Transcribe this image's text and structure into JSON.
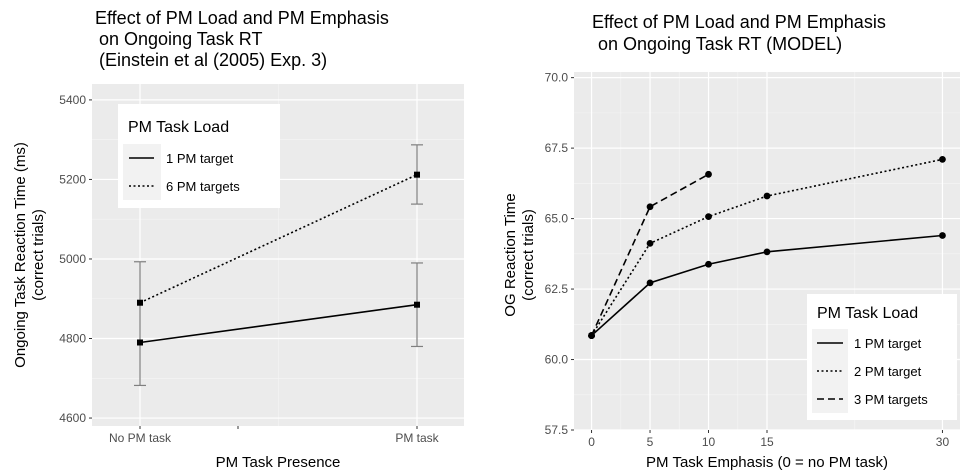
{
  "chart_data": [
    {
      "type": "line",
      "title": [
        "Effect of PM Load and PM Emphasis",
        "on Ongoing Task RT",
        "(Einstein et al (2005) Exp. 3)"
      ],
      "xlabel": "PM Task Presence",
      "ylabel": [
        "Ongoing Task Reaction Time (ms)",
        "(correct trials)"
      ],
      "categories": [
        "No PM task",
        "PM task"
      ],
      "ylim": [
        4580,
        5440
      ],
      "yticks": [
        "4600",
        "4800",
        "5000",
        "5200",
        "5400"
      ],
      "grid": true,
      "legend": {
        "title": "PM Task Load",
        "position": "top-left"
      },
      "series": [
        {
          "name": "1 PM target",
          "linetype": "solid",
          "values": [
            4790,
            4885
          ],
          "err_low": [
            4682,
            4780
          ],
          "err_high": [
            4993,
            4990
          ]
        },
        {
          "name": "6 PM targets",
          "linetype": "dotted",
          "values": [
            4890,
            5212
          ],
          "err_low": [
            4890,
            5138
          ],
          "err_high": [
            4890,
            5287
          ]
        }
      ]
    },
    {
      "type": "line",
      "title": [
        "Effect of PM Load and PM Emphasis",
        "on Ongoing Task RT (MODEL)"
      ],
      "xlabel": "PM Task Emphasis (0 = no PM task)",
      "ylabel": [
        "OG Reaction Time",
        "(correct trials)"
      ],
      "xticks": [
        "0",
        "5",
        "10",
        "15",
        "30"
      ],
      "ylim": [
        57.5,
        70.2
      ],
      "yticks": [
        "57.5",
        "60.0",
        "62.5",
        "65.0",
        "67.5",
        "70.0"
      ],
      "grid": true,
      "legend": {
        "title": "PM Task Load",
        "position": "bottom-right"
      },
      "series": [
        {
          "name": "1 PM target",
          "linetype": "solid",
          "x": [
            0,
            5,
            10,
            15,
            30
          ],
          "values": [
            60.85,
            62.72,
            63.38,
            63.82,
            64.4
          ]
        },
        {
          "name": "2 PM target",
          "linetype": "dotted",
          "x": [
            0,
            5,
            10,
            15,
            30
          ],
          "values": [
            60.85,
            64.12,
            65.07,
            65.8,
            67.1
          ]
        },
        {
          "name": "3 PM targets",
          "linetype": "dashed",
          "x": [
            0,
            5,
            10
          ],
          "values": [
            60.85,
            65.42,
            66.57
          ]
        }
      ]
    }
  ]
}
